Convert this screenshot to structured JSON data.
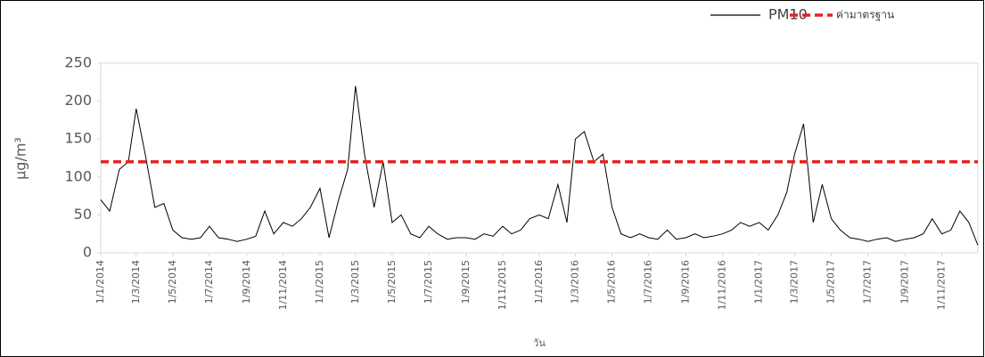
{
  "chart_data": {
    "type": "line",
    "x_label": "วัน",
    "y_label": "µg/m³",
    "legend": "top-right",
    "grid": false,
    "xlim": [
      "1/1/2014",
      "31/12/2017"
    ],
    "xticks": [
      "1/1/2014",
      "1/3/2014",
      "1/5/2014",
      "1/7/2014",
      "1/9/2014",
      "1/11/2014",
      "1/1/2015",
      "1/3/2015",
      "1/5/2015",
      "1/7/2015",
      "1/9/2015",
      "1/11/2015",
      "1/1/2016",
      "1/3/2016",
      "1/5/2016",
      "1/7/2016",
      "1/9/2016",
      "1/11/2016",
      "1/1/2017",
      "1/3/2017",
      "1/5/2017",
      "1/7/2017",
      "1/9/2017",
      "1/11/2017"
    ],
    "ylim": [
      0,
      250
    ],
    "yticks": [
      0,
      50,
      100,
      150,
      200,
      250
    ],
    "x": [
      "1/1/2014",
      "16/1/2014",
      "1/2/2014",
      "16/2/2014",
      "1/3/2014",
      "16/3/2014",
      "1/4/2014",
      "16/4/2014",
      "1/5/2014",
      "16/5/2014",
      "1/6/2014",
      "16/6/2014",
      "1/7/2014",
      "16/7/2014",
      "1/8/2014",
      "16/8/2014",
      "1/9/2014",
      "16/9/2014",
      "1/10/2014",
      "16/10/2014",
      "1/11/2014",
      "16/11/2014",
      "1/12/2014",
      "16/12/2014",
      "1/1/2015",
      "16/1/2015",
      "1/2/2015",
      "16/2/2015",
      "1/3/2015",
      "16/3/2015",
      "1/4/2015",
      "16/4/2015",
      "1/5/2015",
      "16/5/2015",
      "1/6/2015",
      "16/6/2015",
      "1/7/2015",
      "16/7/2015",
      "1/8/2015",
      "16/8/2015",
      "1/9/2015",
      "16/9/2015",
      "1/10/2015",
      "16/10/2015",
      "1/11/2015",
      "16/11/2015",
      "1/12/2015",
      "16/12/2015",
      "1/1/2016",
      "16/1/2016",
      "1/2/2016",
      "16/2/2016",
      "1/3/2016",
      "16/3/2016",
      "1/4/2016",
      "16/4/2016",
      "1/5/2016",
      "16/5/2016",
      "1/6/2016",
      "16/6/2016",
      "1/7/2016",
      "16/7/2016",
      "1/8/2016",
      "16/8/2016",
      "1/9/2016",
      "16/9/2016",
      "1/10/2016",
      "16/10/2016",
      "1/11/2016",
      "16/11/2016",
      "1/12/2016",
      "16/12/2016",
      "1/1/2017",
      "16/1/2017",
      "1/2/2017",
      "16/2/2017",
      "1/3/2017",
      "16/3/2017",
      "1/4/2017",
      "16/4/2017",
      "1/5/2017",
      "16/5/2017",
      "1/6/2017",
      "16/6/2017",
      "1/7/2017",
      "16/7/2017",
      "1/8/2017",
      "16/8/2017",
      "1/9/2017",
      "16/9/2017",
      "1/10/2017",
      "16/10/2017",
      "1/11/2017",
      "16/11/2017",
      "1/12/2017",
      "16/12/2017",
      "31/12/2017"
    ],
    "series": [
      {
        "name": "PM10",
        "color": "#000000",
        "values": [
          70,
          55,
          110,
          120,
          190,
          130,
          60,
          65,
          30,
          20,
          18,
          20,
          35,
          20,
          18,
          15,
          18,
          22,
          55,
          25,
          40,
          35,
          45,
          60,
          85,
          20,
          70,
          110,
          220,
          130,
          60,
          120,
          40,
          50,
          25,
          20,
          35,
          25,
          18,
          20,
          20,
          18,
          25,
          22,
          35,
          25,
          30,
          45,
          50,
          45,
          90,
          40,
          150,
          160,
          120,
          130,
          60,
          25,
          20,
          25,
          20,
          18,
          30,
          18,
          20,
          25,
          20,
          22,
          25,
          30,
          40,
          35,
          40,
          30,
          50,
          80,
          130,
          170,
          40,
          90,
          45,
          30,
          20,
          18,
          15,
          18,
          20,
          15,
          18,
          20,
          25,
          45,
          25,
          30,
          55,
          40,
          10
        ]
      }
    ],
    "threshold": {
      "name": "ค่ามาตรฐาน",
      "value": 120,
      "color": "#e8201e"
    }
  }
}
